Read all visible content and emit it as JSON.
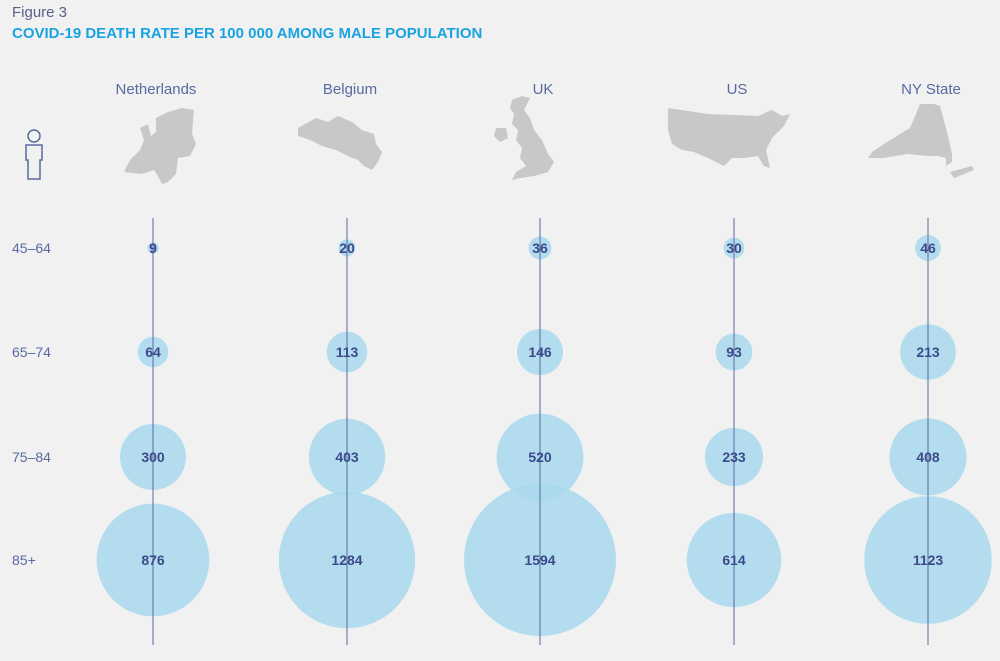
{
  "figure_label": "Figure 3",
  "chart_data": {
    "type": "bubble",
    "title": "COVID-19 DEATH RATE PER 100 000 AMONG MALE POPULATION",
    "categories": [
      "Netherlands",
      "Belgium",
      "UK",
      "US",
      "NY State"
    ],
    "rows": [
      "45–64",
      "65–74",
      "75–84",
      "85+"
    ],
    "series": [
      {
        "values": [
          9,
          64,
          300,
          876
        ]
      },
      {
        "values": [
          20,
          113,
          403,
          1284
        ]
      },
      {
        "values": [
          36,
          146,
          520,
          1594
        ]
      },
      {
        "values": [
          30,
          93,
          233,
          614
        ]
      },
      {
        "values": [
          46,
          213,
          408,
          1123
        ]
      }
    ],
    "bubble_color": "#a8d8ed",
    "line_color": "#5a6aa0",
    "label_color": "#3a4a8a",
    "icons": [
      "male-person-icon",
      "netherlands-map-icon",
      "belgium-map-icon",
      "uk-map-icon",
      "us-map-icon",
      "ny-state-map-icon"
    ]
  }
}
